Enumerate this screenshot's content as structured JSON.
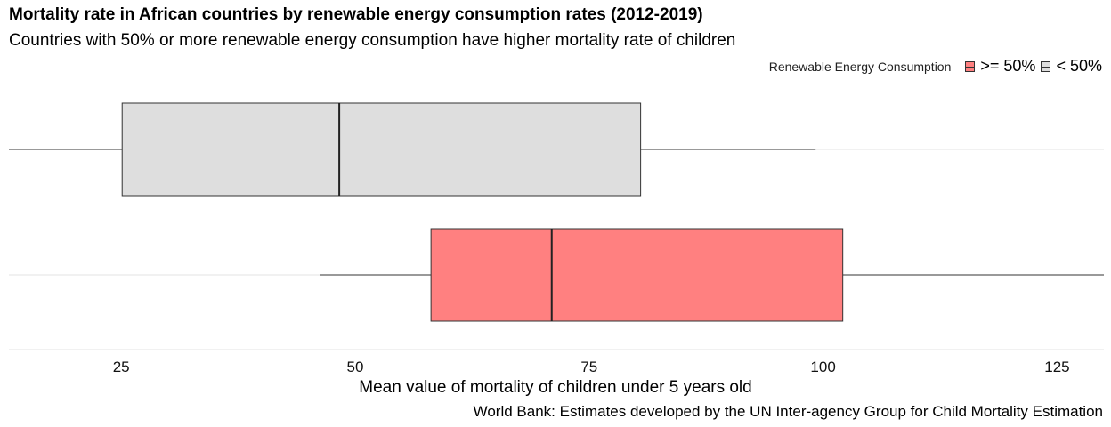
{
  "chart_data": {
    "type": "boxplot",
    "title": "Mortality rate in African countries by renewable energy consumption rates (2012-2019)",
    "subtitle": "Countries with 50% or more renewable energy consumption have higher mortality rate of children",
    "xlabel": "Mean value of mortality of children under 5 years old",
    "caption": "World Bank: Estimates developed by the UN Inter-agency Group for Child Mortality Estimation",
    "xlim": [
      13,
      130
    ],
    "x_ticks": [
      25,
      50,
      75,
      100,
      125
    ],
    "grid": true,
    "legend": {
      "title": "Renewable Energy Consumption",
      "position": "top-right",
      "entries": [
        {
          "label": ">= 50%",
          "color": "#ff8080"
        },
        {
          "label": "< 50%",
          "color": "#dedede"
        }
      ]
    },
    "series": [
      {
        "label": "< 50%",
        "color": "#dedede",
        "whisker_low": 13,
        "q1": 25.1,
        "median": 48.3,
        "q3": 80.5,
        "whisker_high": 99.2
      },
      {
        "label": ">= 50%",
        "color": "#ff8080",
        "whisker_low": 46.2,
        "q1": 58.1,
        "median": 71.0,
        "q3": 102.1,
        "whisker_high": 130
      }
    ]
  }
}
